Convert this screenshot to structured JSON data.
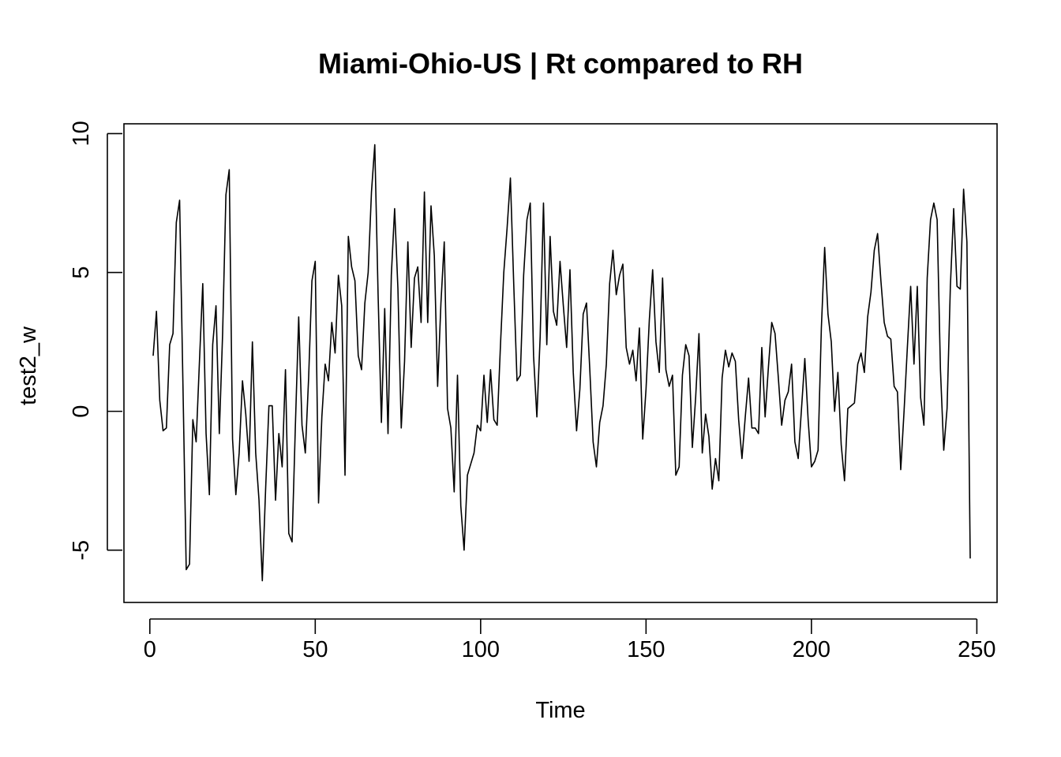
{
  "chart_data": {
    "type": "line",
    "title": "Miami-Ohio-US | Rt compared to RH",
    "xlabel": "Time",
    "ylabel": "test2_w",
    "xlim": [
      1,
      248
    ],
    "ylim": [
      -6.2,
      9.7
    ],
    "x_ticks": [
      0,
      50,
      100,
      150,
      200,
      250
    ],
    "y_ticks": [
      -5,
      0,
      5,
      10
    ],
    "x_tick_labels": [
      "0",
      "50",
      "100",
      "150",
      "200",
      "250"
    ],
    "y_tick_labels": [
      "-5",
      "0",
      "5",
      "10"
    ],
    "grid": false,
    "series": [
      {
        "x_start": 1,
        "x_step": 1,
        "color": "#000000",
        "values": [
          2.0,
          3.6,
          0.4,
          -0.7,
          -0.6,
          2.4,
          2.8,
          6.8,
          7.6,
          1.0,
          -5.7,
          -5.5,
          -0.3,
          -1.1,
          1.8,
          4.6,
          -0.8,
          -3.0,
          2.4,
          3.8,
          -0.8,
          2.8,
          7.8,
          8.7,
          -1.0,
          -3.0,
          -1.5,
          1.1,
          -0.1,
          -1.8,
          2.5,
          -1.5,
          -3.2,
          -6.1,
          -2.8,
          0.2,
          0.2,
          -3.2,
          -0.8,
          -2.0,
          1.5,
          -4.4,
          -4.7,
          -0.5,
          3.4,
          -0.5,
          -1.5,
          1.2,
          4.7,
          5.4,
          -3.3,
          -0.2,
          1.7,
          1.1,
          3.2,
          2.1,
          4.9,
          3.8,
          -2.3,
          6.3,
          5.2,
          4.7,
          2.0,
          1.5,
          3.9,
          5.0,
          7.9,
          9.6,
          4.2,
          -0.4,
          3.7,
          -0.8,
          4.9,
          7.3,
          4.4,
          -0.6,
          1.8,
          6.1,
          2.3,
          4.8,
          5.2,
          3.2,
          7.9,
          3.2,
          7.4,
          5.6,
          0.9,
          3.9,
          6.1,
          0.1,
          -0.6,
          -2.9,
          1.3,
          -3.4,
          -5.0,
          -2.3,
          -1.9,
          -1.5,
          -0.5,
          -0.7,
          1.3,
          -0.4,
          1.5,
          -0.3,
          -0.5,
          2.4,
          5.0,
          6.6,
          8.4,
          4.6,
          1.1,
          1.3,
          4.9,
          6.9,
          7.5,
          2.0,
          -0.2,
          2.7,
          7.5,
          2.4,
          6.3,
          3.6,
          3.1,
          5.4,
          3.8,
          2.3,
          5.1,
          1.4,
          -0.7,
          0.8,
          3.5,
          3.9,
          1.5,
          -1.1,
          -2.0,
          -0.4,
          0.2,
          1.7,
          4.6,
          5.8,
          4.2,
          4.9,
          5.3,
          2.3,
          1.7,
          2.2,
          1.1,
          3.0,
          -1.0,
          0.8,
          3.3,
          5.1,
          2.5,
          1.4,
          4.8,
          1.5,
          0.9,
          1.3,
          -2.3,
          -2.0,
          1.3,
          2.4,
          2.0,
          -1.3,
          0.5,
          2.8,
          -1.5,
          -0.1,
          -0.9,
          -2.8,
          -1.7,
          -2.5,
          1.2,
          2.2,
          1.6,
          2.1,
          1.8,
          -0.3,
          -1.7,
          -0.2,
          1.2,
          -0.6,
          -0.6,
          -0.8,
          2.3,
          -0.2,
          1.6,
          3.2,
          2.8,
          1.2,
          -0.5,
          0.4,
          0.7,
          1.7,
          -1.1,
          -1.7,
          0.1,
          1.9,
          -0.3,
          -2.0,
          -1.8,
          -1.4,
          3.0,
          5.9,
          3.5,
          2.5,
          0.0,
          1.4,
          -1.2,
          -2.5,
          0.1,
          0.2,
          0.3,
          1.7,
          2.1,
          1.4,
          3.4,
          4.3,
          5.8,
          6.4,
          4.7,
          3.2,
          2.7,
          2.6,
          0.9,
          0.7,
          -2.1,
          0.0,
          2.3,
          4.5,
          1.7,
          4.5,
          0.5,
          -0.5,
          4.8,
          6.9,
          7.5,
          6.9,
          1.5,
          -1.4,
          0.1,
          4.5,
          7.3,
          4.5,
          4.4,
          8.0,
          6.1,
          -5.3
        ]
      }
    ]
  }
}
